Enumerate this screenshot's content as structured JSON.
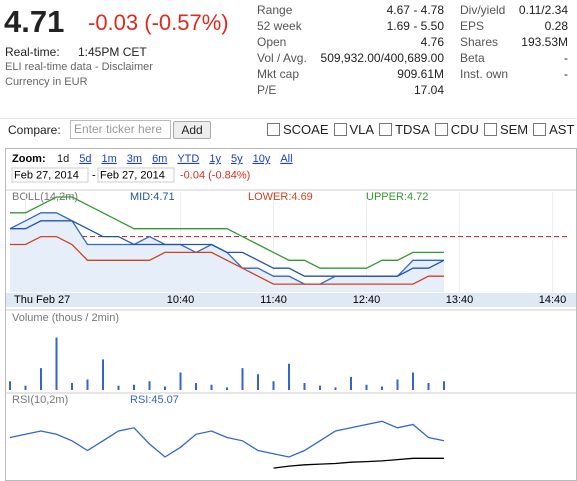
{
  "quote": {
    "price": "4.71",
    "change": "-0.03 (-0.57%)",
    "realtime_label": "Real-time:",
    "realtime_time": "1:45PM CET",
    "source": "ELI real-time data - Disclaimer",
    "currency": "Currency in EUR"
  },
  "stats_left": [
    [
      "Range",
      "4.67 - 4.78"
    ],
    [
      "52 week",
      "1.69 - 5.50"
    ],
    [
      "Open",
      "4.76"
    ],
    [
      "Vol / Avg.",
      "509,932.00/400,689.00"
    ],
    [
      "Mkt cap",
      "909.61M"
    ],
    [
      "P/E",
      "17.04"
    ]
  ],
  "stats_right": [
    [
      "Div/yield",
      "0.11/2.34"
    ],
    [
      "EPS",
      "0.28"
    ],
    [
      "Shares",
      "193.53M"
    ],
    [
      "Beta",
      "-"
    ],
    [
      "Inst. own",
      "-"
    ]
  ],
  "compare": {
    "label": "Compare:",
    "placeholder": "Enter ticker here",
    "button": "Add",
    "tickers": [
      "SCOAE",
      "VLA",
      "TDSA",
      "CDU",
      "SEM",
      "AST"
    ]
  },
  "controls": {
    "zoom_label": "Zoom:",
    "zoom": [
      "1d",
      "5d",
      "1m",
      "3m",
      "6m",
      "YTD",
      "1y",
      "5y",
      "10y",
      "All"
    ],
    "date_from": "Feb 27, 2014",
    "date_sep": "-",
    "date_to": "Feb 27, 2014",
    "range_change": "-0.04 (-0.84%)"
  },
  "chart_data": [
    {
      "type": "line",
      "title": "BOLL(14,2m)",
      "x": [
        530,
        540,
        550,
        560,
        570,
        580,
        590,
        600,
        610,
        620,
        630,
        640,
        650,
        660,
        670,
        680,
        690,
        700,
        710,
        720,
        730,
        740,
        750,
        760,
        770,
        780,
        790,
        800,
        810
      ],
      "xlim": [
        530,
        890
      ],
      "ylim": [
        4.67,
        4.79
      ],
      "xticks": [
        {
          "value": 540,
          "label": "Thu Feb 27"
        },
        {
          "value": 640,
          "label": "10:40"
        },
        {
          "value": 700,
          "label": "11:40"
        },
        {
          "value": 760,
          "label": "12:40"
        },
        {
          "value": 820,
          "label": "13:40"
        },
        {
          "value": 880,
          "label": "14:40"
        }
      ],
      "previous_close": 4.74,
      "previous_close_color": "#b22222",
      "series": [
        {
          "color": "#3366cc",
          "fill": "#e6eef9",
          "values": [
            4.75,
            4.76,
            4.77,
            4.77,
            4.76,
            4.73,
            4.73,
            4.73,
            4.73,
            4.74,
            4.73,
            4.73,
            4.72,
            4.73,
            4.72,
            4.7,
            4.7,
            4.69,
            4.69,
            4.68,
            4.68,
            4.69,
            4.69,
            4.69,
            4.69,
            4.69,
            4.71,
            4.71,
            4.71
          ]
        },
        {
          "name": "MID:4.71",
          "color": "#2255aa",
          "values": [
            4.75,
            4.75,
            4.76,
            4.76,
            4.76,
            4.75,
            4.74,
            4.74,
            4.73,
            4.73,
            4.73,
            4.73,
            4.73,
            4.73,
            4.72,
            4.72,
            4.71,
            4.7,
            4.7,
            4.69,
            4.69,
            4.69,
            4.69,
            4.69,
            4.69,
            4.69,
            4.7,
            4.7,
            4.71
          ]
        },
        {
          "name": "LOWER:4.69",
          "color": "#cc4422",
          "values": [
            4.73,
            4.73,
            4.74,
            4.74,
            4.73,
            4.71,
            4.71,
            4.71,
            4.71,
            4.71,
            4.72,
            4.72,
            4.72,
            4.72,
            4.71,
            4.7,
            4.69,
            4.68,
            4.68,
            4.68,
            4.68,
            4.68,
            4.68,
            4.68,
            4.68,
            4.68,
            4.68,
            4.69,
            4.69
          ]
        },
        {
          "name": "UPPER:4.72",
          "color": "#339933",
          "values": [
            4.77,
            4.77,
            4.78,
            4.79,
            4.79,
            4.78,
            4.77,
            4.76,
            4.75,
            4.75,
            4.75,
            4.75,
            4.75,
            4.75,
            4.75,
            4.74,
            4.73,
            4.72,
            4.71,
            4.71,
            4.7,
            4.7,
            4.7,
            4.7,
            4.71,
            4.71,
            4.72,
            4.72,
            4.72
          ]
        }
      ]
    },
    {
      "type": "bar",
      "title": "Volume (thous / 2min)",
      "x": [
        530,
        540,
        550,
        560,
        570,
        580,
        590,
        600,
        610,
        620,
        630,
        640,
        650,
        660,
        670,
        680,
        690,
        700,
        710,
        720,
        730,
        740,
        750,
        760,
        770,
        780,
        790,
        800,
        810
      ],
      "xlim": [
        530,
        890
      ],
      "ylim": [
        0,
        80
      ],
      "color": "#3366cc",
      "values": [
        10,
        5,
        25,
        60,
        8,
        12,
        35,
        5,
        6,
        10,
        4,
        20,
        8,
        6,
        3,
        25,
        18,
        10,
        30,
        8,
        5,
        3,
        15,
        6,
        4,
        12,
        20,
        8,
        10
      ]
    },
    {
      "type": "line",
      "title": "RSI(10,2m)",
      "x": [
        530,
        540,
        550,
        560,
        570,
        580,
        590,
        600,
        610,
        620,
        630,
        640,
        650,
        660,
        670,
        680,
        690,
        700,
        710,
        720,
        730,
        740,
        750,
        760,
        770,
        780,
        790,
        800,
        810
      ],
      "xlim": [
        530,
        890
      ],
      "ylim": [
        0,
        100
      ],
      "series": [
        {
          "name": "RSI:45.07",
          "color": "#3366cc",
          "values": [
            50,
            55,
            60,
            55,
            45,
            30,
            45,
            60,
            65,
            40,
            20,
            35,
            55,
            60,
            50,
            45,
            30,
            25,
            20,
            30,
            45,
            60,
            65,
            70,
            75,
            65,
            70,
            50,
            45
          ]
        },
        {
          "color": "#000000",
          "values": [
            null,
            null,
            null,
            null,
            null,
            null,
            null,
            null,
            null,
            null,
            null,
            null,
            null,
            null,
            null,
            null,
            null,
            3,
            6,
            8,
            9,
            10,
            12,
            13,
            14,
            16,
            18,
            18,
            18
          ]
        }
      ]
    }
  ]
}
